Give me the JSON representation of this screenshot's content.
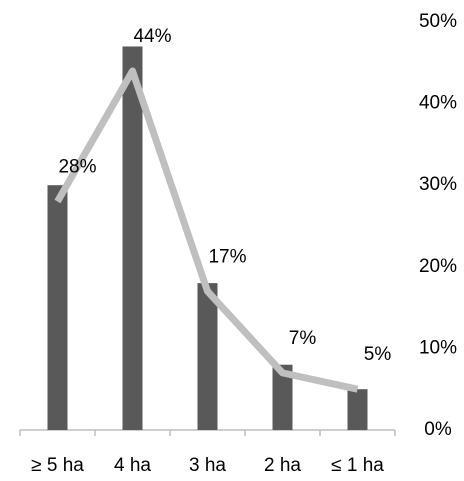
{
  "chart_data": {
    "type": "bar-line",
    "categories": [
      "≥ 5 ha",
      "4 ha",
      "3 ha",
      "2 ha",
      "≤ 1 ha"
    ],
    "series": [
      {
        "type": "bar",
        "color": "#595959",
        "values": [
          30,
          47,
          18,
          8,
          5
        ]
      },
      {
        "type": "line",
        "color": "#bfbfbf",
        "values": [
          28,
          44,
          17,
          7,
          5
        ],
        "value_labels": [
          "28%",
          "44%",
          "17%",
          "7%",
          "5%"
        ]
      }
    ],
    "ylim": [
      0,
      50
    ],
    "yticks": [
      {
        "value": 0,
        "label": "0%"
      },
      {
        "value": 10,
        "label": "10%"
      },
      {
        "value": 20,
        "label": "20%"
      },
      {
        "value": 30,
        "label": "30%"
      },
      {
        "value": 40,
        "label": "40%"
      },
      {
        "value": 50,
        "label": "50%"
      }
    ]
  }
}
